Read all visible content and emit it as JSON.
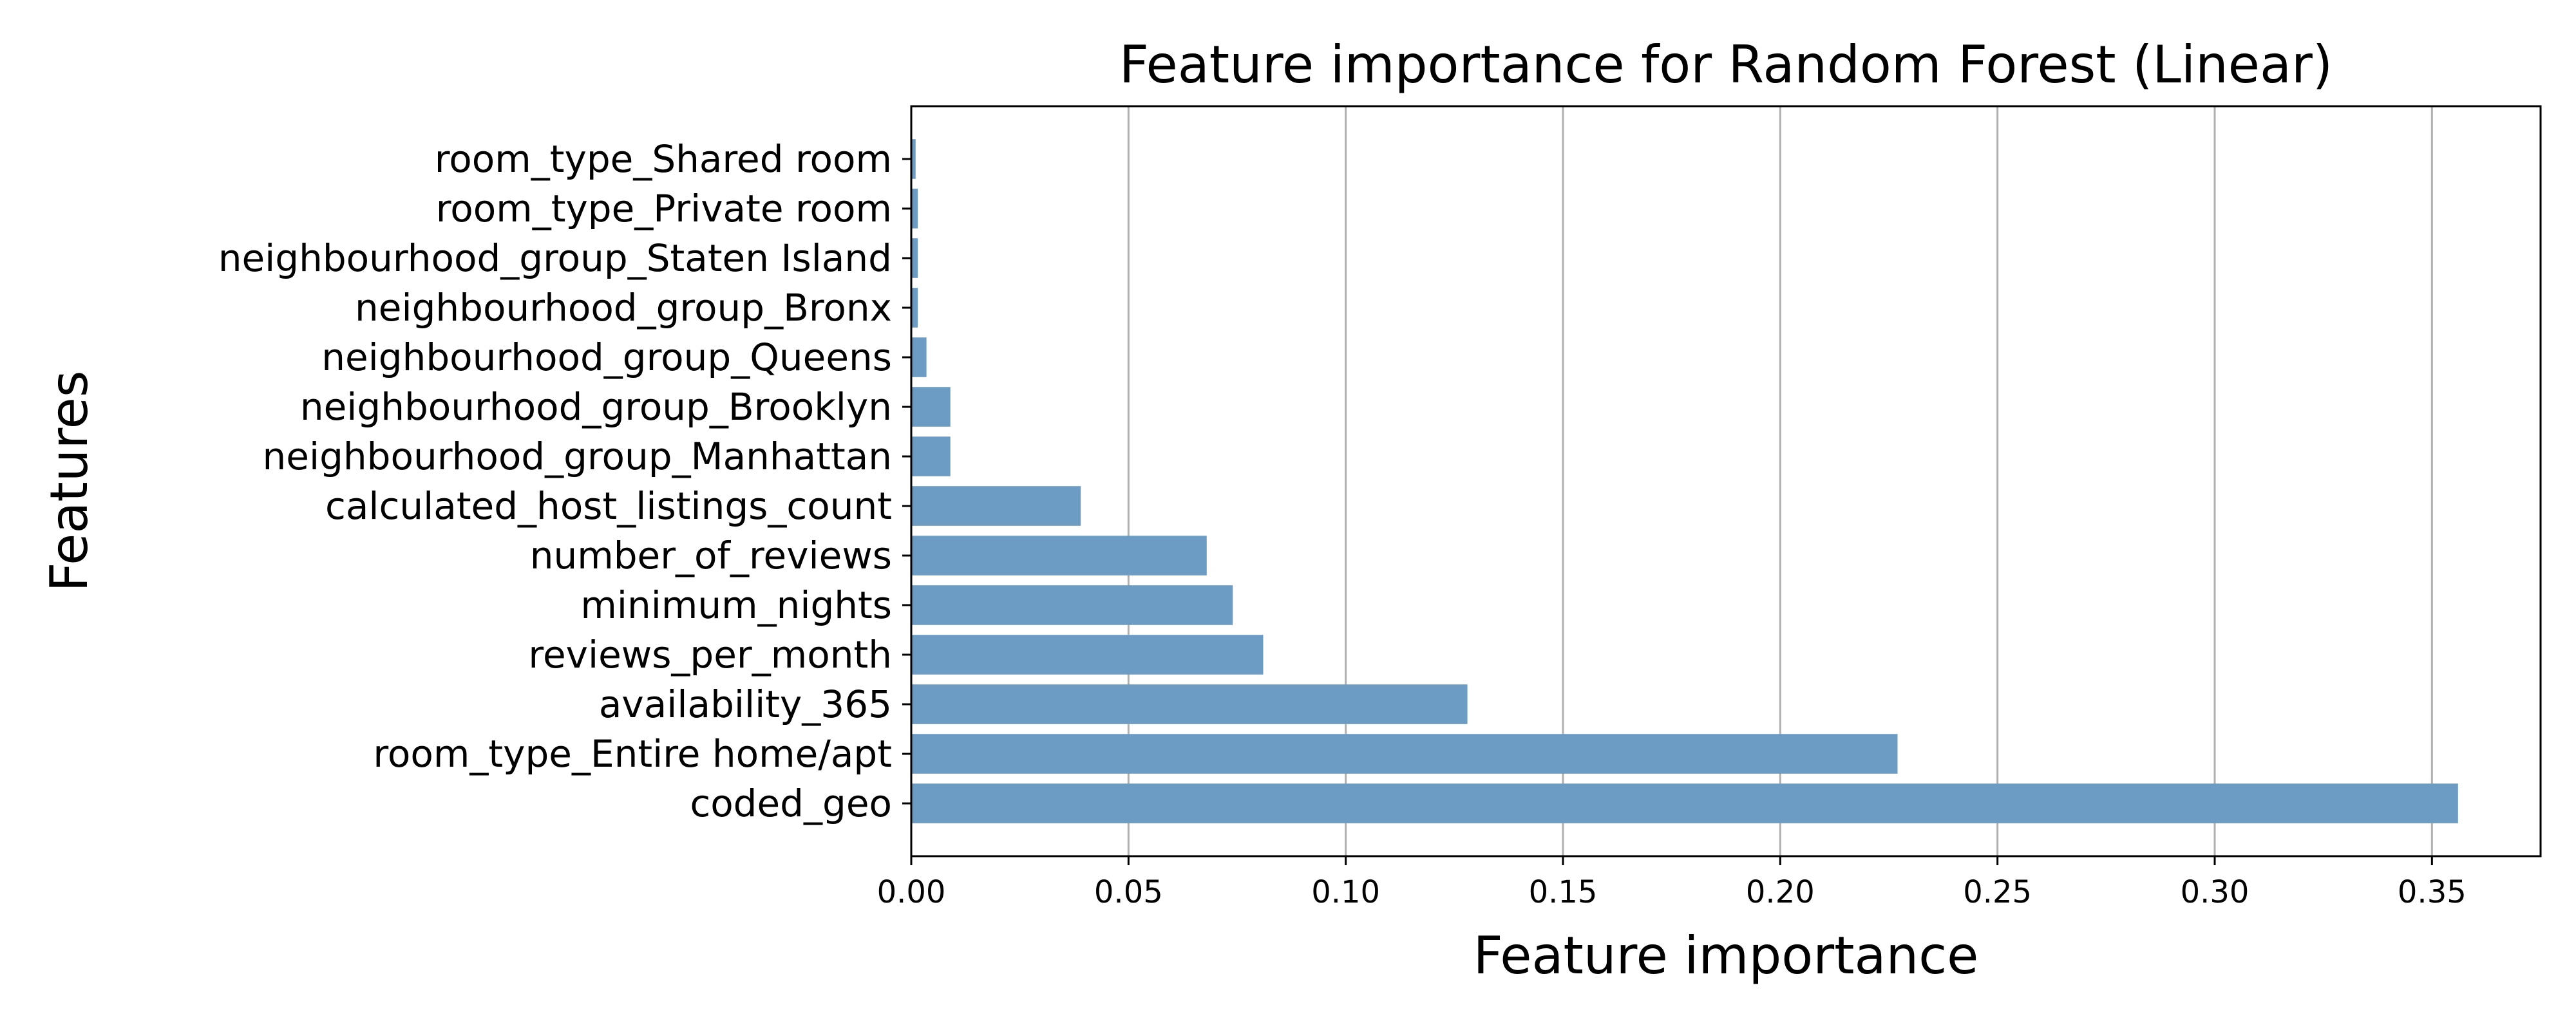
{
  "chart_data": {
    "type": "bar",
    "orientation": "horizontal",
    "title": "Feature importance for Random Forest (Linear)",
    "xlabel": "Feature importance",
    "ylabel": "Features",
    "xlim": [
      0,
      0.375
    ],
    "xticks": [
      "0.00",
      "0.05",
      "0.10",
      "0.15",
      "0.20",
      "0.25",
      "0.30",
      "0.35"
    ],
    "grid": "vertical",
    "bar_color": "#6c9bc4",
    "categories": [
      "coded_geo",
      "room_type_Entire home/apt",
      "availability_365",
      "reviews_per_month",
      "minimum_nights",
      "number_of_reviews",
      "calculated_host_listings_count",
      "neighbourhood_group_Manhattan",
      "neighbourhood_group_Brooklyn",
      "neighbourhood_group_Queens",
      "neighbourhood_group_Bronx",
      "neighbourhood_group_Staten Island",
      "room_type_Private room",
      "room_type_Shared room"
    ],
    "values": [
      0.356,
      0.227,
      0.128,
      0.081,
      0.074,
      0.068,
      0.039,
      0.009,
      0.009,
      0.0035,
      0.0015,
      0.0015,
      0.0015,
      0.001
    ]
  }
}
